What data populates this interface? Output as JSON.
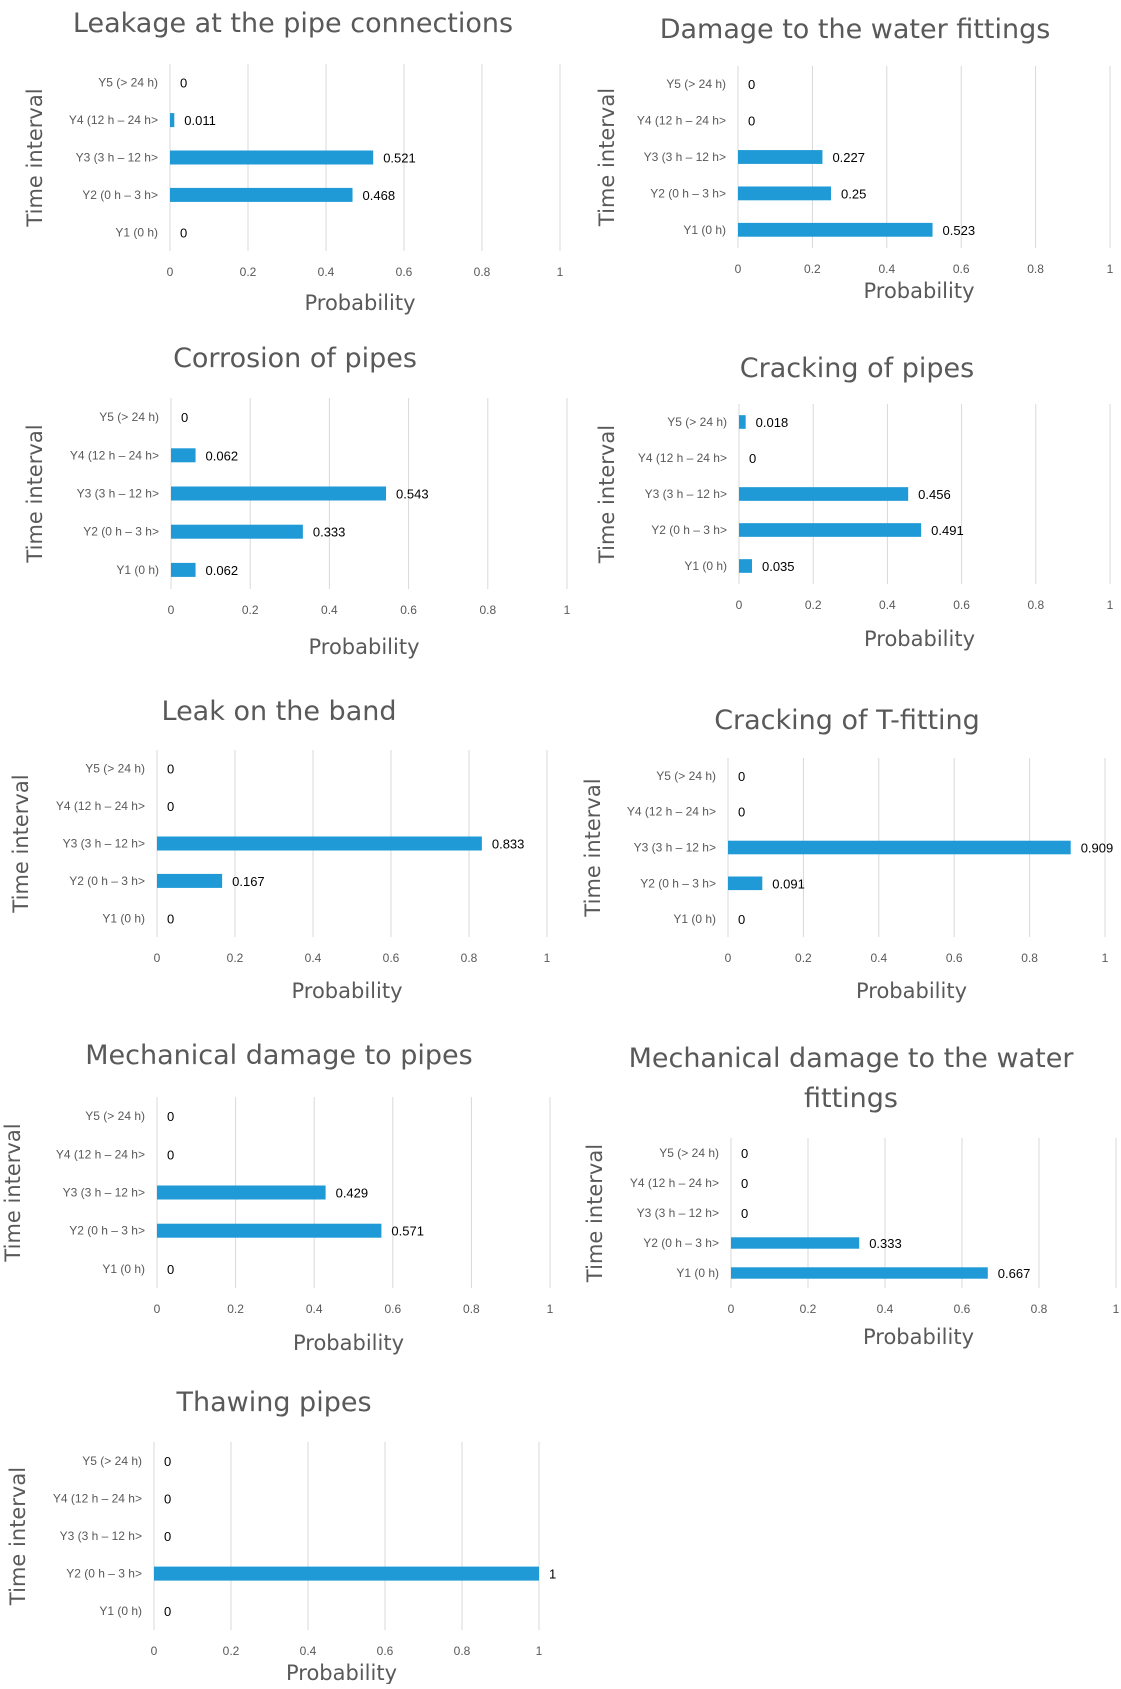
{
  "colors": {
    "bar": "#1f9ad6",
    "grid": "#d9d9d9",
    "text": "#595959",
    "label": "#000000"
  },
  "chart_data": [
    {
      "type": "bar",
      "orientation": "horizontal",
      "title": "Leakage at the pipe connections",
      "xlabel": "Probability",
      "ylabel": "Time interval",
      "categories": [
        "Y5 (> 24 h)",
        "Y4 (12 h – 24 h>",
        "Y3 (3 h – 12 h>",
        "Y2 (0 h – 3 h>",
        "Y1 (0 h)"
      ],
      "values": [
        0,
        0.011,
        0.521,
        0.468,
        0
      ],
      "xlim": [
        0,
        1
      ],
      "xticks": [
        "0",
        "0.2",
        "0.4",
        "0.6",
        "0.8",
        "1"
      ],
      "grid": true
    },
    {
      "type": "bar",
      "orientation": "horizontal",
      "title": "Damage to the water fittings",
      "xlabel": "Probability",
      "ylabel": "Time interval",
      "categories": [
        "Y5 (> 24 h)",
        "Y4 (12 h – 24 h>",
        "Y3 (3 h – 12 h>",
        "Y2 (0 h – 3 h>",
        "Y1 (0 h)"
      ],
      "values": [
        0,
        0,
        0.227,
        0.25,
        0.523
      ],
      "xlim": [
        0,
        1
      ],
      "xticks": [
        "0",
        "0.2",
        "0.4",
        "0.6",
        "0.8",
        "1"
      ],
      "grid": true
    },
    {
      "type": "bar",
      "orientation": "horizontal",
      "title": "Corrosion of pipes",
      "xlabel": "Probability",
      "ylabel": "Time interval",
      "categories": [
        "Y5 (> 24 h)",
        "Y4 (12 h – 24 h>",
        "Y3 (3 h – 12 h>",
        "Y2 (0 h – 3 h>",
        "Y1 (0 h)"
      ],
      "values": [
        0,
        0.062,
        0.543,
        0.333,
        0.062
      ],
      "xlim": [
        0,
        1
      ],
      "xticks": [
        "0",
        "0.2",
        "0.4",
        "0.6",
        "0.8",
        "1"
      ],
      "grid": true
    },
    {
      "type": "bar",
      "orientation": "horizontal",
      "title": "Cracking of pipes",
      "xlabel": "Probability",
      "ylabel": "Time interval",
      "categories": [
        "Y5 (> 24 h)",
        "Y4 (12 h – 24 h>",
        "Y3 (3 h – 12 h>",
        "Y2 (0 h – 3 h>",
        "Y1 (0 h)"
      ],
      "values": [
        0.018,
        0,
        0.456,
        0.491,
        0.035
      ],
      "xlim": [
        0,
        1
      ],
      "xticks": [
        "0",
        "0.2",
        "0.4",
        "0.6",
        "0.8",
        "1"
      ],
      "grid": true
    },
    {
      "type": "bar",
      "orientation": "horizontal",
      "title": "Leak on the band",
      "xlabel": "Probability",
      "ylabel": "Time interval",
      "categories": [
        "Y5 (> 24 h)",
        "Y4 (12 h – 24 h>",
        "Y3 (3 h – 12 h>",
        "Y2 (0 h – 3 h>",
        "Y1 (0 h)"
      ],
      "values": [
        0,
        0,
        0.833,
        0.167,
        0
      ],
      "xlim": [
        0,
        1
      ],
      "xticks": [
        "0",
        "0.2",
        "0.4",
        "0.6",
        "0.8",
        "1"
      ],
      "grid": true
    },
    {
      "type": "bar",
      "orientation": "horizontal",
      "title": "Cracking of T-fitting",
      "xlabel": "Probability",
      "ylabel": "Time interval",
      "categories": [
        "Y5 (> 24 h)",
        "Y4 (12 h – 24 h>",
        "Y3 (3 h – 12 h>",
        "Y2 (0 h – 3 h>",
        "Y1 (0 h)"
      ],
      "values": [
        0,
        0,
        0.909,
        0.091,
        0
      ],
      "xlim": [
        0,
        1
      ],
      "xticks": [
        "0",
        "0.2",
        "0.4",
        "0.6",
        "0.8",
        "1"
      ],
      "grid": true
    },
    {
      "type": "bar",
      "orientation": "horizontal",
      "title": "Mechanical damage to pipes",
      "xlabel": "Probability",
      "ylabel": "Time interval",
      "categories": [
        "Y5 (> 24 h)",
        "Y4 (12 h – 24 h>",
        "Y3 (3 h – 12 h>",
        "Y2 (0 h – 3 h>",
        "Y1 (0 h)"
      ],
      "values": [
        0,
        0,
        0.429,
        0.571,
        0
      ],
      "xlim": [
        0,
        1
      ],
      "xticks": [
        "0",
        "0.2",
        "0.4",
        "0.6",
        "0.8",
        "1"
      ],
      "grid": true
    },
    {
      "type": "bar",
      "orientation": "horizontal",
      "title": [
        "Mechanical damage to the water",
        "fittings"
      ],
      "xlabel": "Probability",
      "ylabel": "Time interval",
      "categories": [
        "Y5 (> 24 h)",
        "Y4 (12 h – 24 h>",
        "Y3 (3 h – 12 h>",
        "Y2 (0 h – 3 h>",
        "Y1 (0 h)"
      ],
      "values": [
        0,
        0,
        0,
        0.333,
        0.667
      ],
      "xlim": [
        0,
        1
      ],
      "xticks": [
        "0",
        "0.2",
        "0.4",
        "0.6",
        "0.8",
        "1"
      ],
      "grid": true
    },
    {
      "type": "bar",
      "orientation": "horizontal",
      "title": "Thawing pipes",
      "xlabel": "Probability",
      "ylabel": "Time interval",
      "categories": [
        "Y5 (> 24 h)",
        "Y4 (12 h – 24 h>",
        "Y3 (3 h – 12 h>",
        "Y2 (0 h – 3 h>",
        "Y1 (0 h)"
      ],
      "values": [
        0,
        0,
        0,
        1,
        0
      ],
      "xlim": [
        0,
        1
      ],
      "xticks": [
        "0",
        "0.2",
        "0.4",
        "0.6",
        "0.8",
        "1"
      ],
      "grid": true
    }
  ]
}
